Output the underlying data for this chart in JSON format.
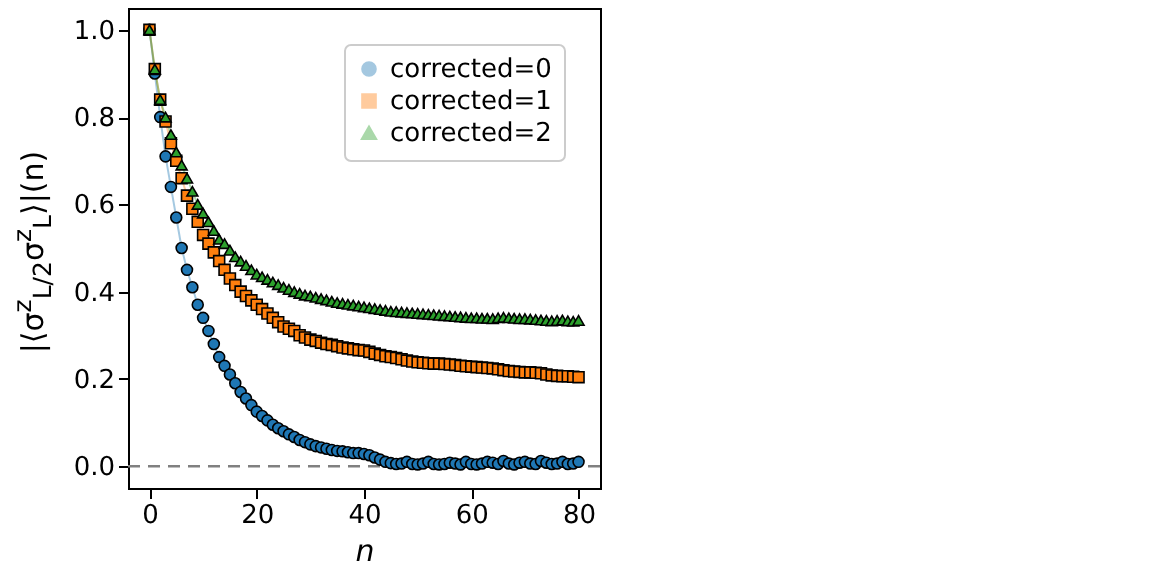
{
  "chart_data": {
    "type": "line",
    "xlabel": "n",
    "ylabel": "|⟨σ$^{z}$$_{L/2}$σ$^{z}$$_{L}$⟩|(n)",
    "x": [
      0,
      1,
      2,
      3,
      4,
      5,
      6,
      7,
      8,
      9,
      10,
      11,
      12,
      13,
      14,
      15,
      16,
      17,
      18,
      19,
      20,
      21,
      22,
      23,
      24,
      25,
      26,
      27,
      28,
      29,
      30,
      31,
      32,
      33,
      34,
      35,
      36,
      37,
      38,
      39,
      40,
      41,
      42,
      43,
      44,
      45,
      46,
      47,
      48,
      49,
      50,
      51,
      52,
      53,
      54,
      55,
      56,
      57,
      58,
      59,
      60,
      61,
      62,
      63,
      64,
      65,
      66,
      67,
      68,
      69,
      70,
      71,
      72,
      73,
      74,
      75,
      76,
      77,
      78,
      79,
      80
    ],
    "series": [
      {
        "name": "corrected=0",
        "color": "#1f77b4",
        "marker": "circle",
        "values": [
          1.0,
          0.9,
          0.8,
          0.71,
          0.64,
          0.57,
          0.5,
          0.45,
          0.41,
          0.37,
          0.34,
          0.31,
          0.28,
          0.25,
          0.23,
          0.21,
          0.19,
          0.17,
          0.155,
          0.14,
          0.125,
          0.115,
          0.105,
          0.095,
          0.087,
          0.08,
          0.073,
          0.067,
          0.06,
          0.055,
          0.05,
          0.046,
          0.043,
          0.04,
          0.037,
          0.035,
          0.034,
          0.032,
          0.03,
          0.03,
          0.028,
          0.025,
          0.02,
          0.015,
          0.01,
          0.007,
          0.005,
          0.006,
          0.01,
          0.005,
          0.004,
          0.006,
          0.01,
          0.005,
          0.004,
          0.005,
          0.008,
          0.006,
          0.004,
          0.01,
          0.005,
          0.004,
          0.006,
          0.01,
          0.008,
          0.005,
          0.012,
          0.006,
          0.004,
          0.008,
          0.01,
          0.006,
          0.005,
          0.012,
          0.008,
          0.005,
          0.006,
          0.01,
          0.005,
          0.006,
          0.01
        ]
      },
      {
        "name": "corrected=1",
        "color": "#ff7f0e",
        "marker": "square",
        "values": [
          1.0,
          0.91,
          0.84,
          0.79,
          0.74,
          0.7,
          0.66,
          0.62,
          0.59,
          0.56,
          0.53,
          0.51,
          0.49,
          0.47,
          0.45,
          0.43,
          0.415,
          0.4,
          0.39,
          0.38,
          0.37,
          0.36,
          0.35,
          0.34,
          0.33,
          0.32,
          0.315,
          0.31,
          0.3,
          0.295,
          0.29,
          0.287,
          0.283,
          0.28,
          0.278,
          0.275,
          0.272,
          0.27,
          0.268,
          0.266,
          0.265,
          0.262,
          0.258,
          0.255,
          0.252,
          0.25,
          0.248,
          0.245,
          0.242,
          0.24,
          0.238,
          0.237,
          0.236,
          0.235,
          0.235,
          0.234,
          0.233,
          0.232,
          0.23,
          0.229,
          0.228,
          0.227,
          0.226,
          0.225,
          0.224,
          0.222,
          0.22,
          0.218,
          0.217,
          0.216,
          0.215,
          0.215,
          0.214,
          0.213,
          0.21,
          0.208,
          0.207,
          0.206,
          0.206,
          0.205,
          0.204
        ]
      },
      {
        "name": "corrected=2",
        "color": "#2ca02c",
        "marker": "triangle",
        "values": [
          1.0,
          0.91,
          0.84,
          0.8,
          0.76,
          0.72,
          0.69,
          0.66,
          0.63,
          0.6,
          0.58,
          0.56,
          0.54,
          0.52,
          0.51,
          0.495,
          0.48,
          0.47,
          0.46,
          0.45,
          0.44,
          0.434,
          0.428,
          0.422,
          0.416,
          0.41,
          0.405,
          0.4,
          0.396,
          0.392,
          0.39,
          0.387,
          0.384,
          0.381,
          0.378,
          0.375,
          0.373,
          0.371,
          0.369,
          0.367,
          0.365,
          0.363,
          0.361,
          0.359,
          0.357,
          0.355,
          0.354,
          0.353,
          0.352,
          0.351,
          0.35,
          0.349,
          0.348,
          0.347,
          0.346,
          0.345,
          0.344,
          0.343,
          0.342,
          0.341,
          0.34,
          0.34,
          0.339,
          0.339,
          0.338,
          0.34,
          0.341,
          0.34,
          0.339,
          0.338,
          0.338,
          0.337,
          0.336,
          0.335,
          0.334,
          0.333,
          0.334,
          0.335,
          0.333,
          0.332,
          0.334
        ]
      }
    ],
    "xlim": [
      -4,
      84
    ],
    "xticks": [
      0,
      20,
      40,
      60,
      80
    ],
    "ylim": [
      -0.05,
      1.05
    ],
    "yticks": [
      {
        "value": 0,
        "label": "0.0"
      },
      0.2,
      0.4,
      0.6,
      0.8,
      {
        "value": 1,
        "label": "1.0"
      }
    ],
    "ref_lines": [
      {
        "axis": "y",
        "value": 0,
        "color": "#808080",
        "line_style": "dashed"
      }
    ],
    "legend": "top right",
    "grid": false
  }
}
